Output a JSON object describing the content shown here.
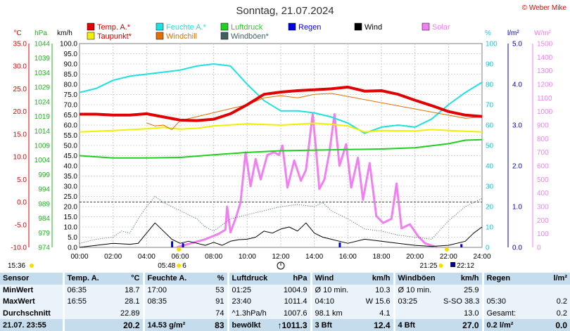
{
  "title": "Sonntag, 21.07.2024",
  "credit": "© Weber Mike",
  "legend": [
    {
      "label": "Temp. A.*",
      "color": "#e00000"
    },
    {
      "label": "Feuchte A.*",
      "color": "#20e0e0"
    },
    {
      "label": "Luftdruck",
      "color": "#20d020"
    },
    {
      "label": "Regen",
      "color": "#0000e0"
    },
    {
      "label": "Wind",
      "color": "#000000"
    },
    {
      "label": "Solar",
      "color": "#f080f0"
    },
    {
      "label": "Taupunkt*",
      "color": "#f0f000"
    },
    {
      "label": "Windchill",
      "color": "#e07000"
    },
    {
      "label": "Windböen*",
      "color": "#406060"
    }
  ],
  "axes": {
    "temp": {
      "unit": "°C",
      "ticks": [
        "35.0",
        "30.0",
        "25.0",
        "20.0",
        "15.0",
        "10.0",
        "5.0",
        "0.0",
        "-5.0",
        "-10.0"
      ],
      "range": [
        -10,
        35
      ],
      "color": "#e00000"
    },
    "pressure": {
      "unit": "hPa",
      "ticks": [
        "1044",
        "1039",
        "1034",
        "1029",
        "1024",
        "1019",
        "1014",
        "1009",
        "1004",
        "999",
        "994",
        "989",
        "984",
        "979",
        "974"
      ],
      "range": [
        974,
        1044
      ],
      "color": "#20b020"
    },
    "wind": {
      "unit": "km/h",
      "ticks": [
        "100.0",
        "95.0",
        "90.0",
        "85.0",
        "80.0",
        "75.0",
        "70.0",
        "65.0",
        "60.0",
        "55.0",
        "50.0",
        "45.0",
        "40.0",
        "35.0",
        "30.0",
        "25.0",
        "20.0",
        "15.0",
        "10.0",
        "5.0",
        "0.0"
      ],
      "range": [
        0,
        100
      ]
    },
    "humidity": {
      "unit": "%",
      "ticks": [
        "100",
        "90",
        "80",
        "70",
        "60",
        "50",
        "40",
        "30",
        "20",
        "10",
        "0"
      ],
      "range": [
        0,
        100
      ],
      "color": "#20c0d0"
    },
    "rain": {
      "unit": "l/m²",
      "ticks": [
        "5.0",
        "4.0",
        "3.0",
        "2.0",
        "1.0",
        "0.0"
      ],
      "range": [
        0,
        5
      ],
      "color": "#0000c0"
    },
    "solar": {
      "unit": "W/m²",
      "ticks": [
        "1500",
        "1400",
        "1300",
        "1200",
        "1100",
        "1000",
        "900",
        "800",
        "700",
        "600",
        "500",
        "400",
        "300",
        "200",
        "100",
        "0"
      ],
      "range": [
        0,
        1500
      ],
      "color": "#f080f0"
    },
    "x": {
      "ticks": [
        "00:00",
        "02:00",
        "04:00",
        "06:00",
        "08:00",
        "10:00",
        "12:00",
        "14:00",
        "16:00",
        "18:00",
        "20:00",
        "22:00",
        "24:00"
      ],
      "range": [
        0,
        24
      ]
    }
  },
  "markers": {
    "left": {
      "time": "15:36"
    },
    "sunrise": {
      "time": "05:48",
      "extra": "6"
    },
    "sunset": {
      "time": "21:25"
    },
    "moon": {
      "time": "22:12"
    }
  },
  "chart_data": {
    "type": "line",
    "x_unit": "hour",
    "series": [
      {
        "name": "Temp. A.*",
        "axis": "temp",
        "points": [
          [
            0,
            19.4
          ],
          [
            1,
            19.4
          ],
          [
            2,
            19.2
          ],
          [
            3,
            19.2
          ],
          [
            4,
            19.5
          ],
          [
            5,
            18.8
          ],
          [
            6,
            18.1
          ],
          [
            7,
            18.0
          ],
          [
            8,
            18.3
          ],
          [
            9,
            19.5
          ],
          [
            10,
            21.5
          ],
          [
            11,
            23.8
          ],
          [
            12,
            24.3
          ],
          [
            13,
            24.6
          ],
          [
            14,
            24.8
          ],
          [
            15,
            25.0
          ],
          [
            16,
            25.4
          ],
          [
            17,
            24.5
          ],
          [
            18,
            24.6
          ],
          [
            19,
            23.8
          ],
          [
            20,
            22.5
          ],
          [
            21,
            21.3
          ],
          [
            22,
            20.0
          ],
          [
            23,
            19.2
          ],
          [
            24,
            18.9
          ]
        ]
      },
      {
        "name": "Feuchte A.*",
        "axis": "humidity",
        "points": [
          [
            0,
            76
          ],
          [
            1,
            78
          ],
          [
            2,
            82
          ],
          [
            3,
            84
          ],
          [
            4,
            85
          ],
          [
            5,
            86
          ],
          [
            6,
            87
          ],
          [
            7,
            89
          ],
          [
            8,
            90
          ],
          [
            9,
            89
          ],
          [
            10,
            80
          ],
          [
            11,
            72
          ],
          [
            12,
            67
          ],
          [
            13,
            67
          ],
          [
            14,
            66
          ],
          [
            15,
            64
          ],
          [
            16,
            61
          ],
          [
            17,
            56
          ],
          [
            18,
            59
          ],
          [
            19,
            60
          ],
          [
            20,
            59
          ],
          [
            21,
            63
          ],
          [
            22,
            70
          ],
          [
            23,
            76
          ],
          [
            24,
            81
          ]
        ]
      },
      {
        "name": "Taupunkt*",
        "axis": "temp",
        "points": [
          [
            0,
            15.5
          ],
          [
            2,
            15.8
          ],
          [
            4,
            16.2
          ],
          [
            5,
            16.5
          ],
          [
            6,
            16.1
          ],
          [
            7,
            16.3
          ],
          [
            8,
            16.8
          ],
          [
            10,
            17.3
          ],
          [
            12,
            17.0
          ],
          [
            14,
            17.4
          ],
          [
            15,
            17.2
          ],
          [
            16,
            16.8
          ],
          [
            17,
            15.5
          ],
          [
            18,
            15.8
          ],
          [
            20,
            15.7
          ],
          [
            21,
            16.0
          ],
          [
            22,
            15.8
          ],
          [
            24,
            15.5
          ]
        ]
      },
      {
        "name": "Windchill",
        "axis": "temp",
        "points": [
          [
            4,
            17.5
          ],
          [
            4.5,
            16.8
          ],
          [
            5,
            17.0
          ],
          [
            5.5,
            16.0
          ],
          [
            6,
            18.0
          ],
          [
            10,
            21.5
          ],
          [
            11,
            23.0
          ],
          [
            12,
            23.5
          ],
          [
            13,
            23.0
          ],
          [
            14,
            23.8
          ],
          [
            15,
            24.0
          ],
          [
            23,
            18.5
          ],
          [
            24,
            18.8
          ]
        ]
      },
      {
        "name": "Luftdruck",
        "axis": "pressure",
        "points": [
          [
            0,
            1005.5
          ],
          [
            2,
            1004.7
          ],
          [
            4,
            1004.7
          ],
          [
            6,
            1004.9
          ],
          [
            8,
            1005.8
          ],
          [
            10,
            1006.6
          ],
          [
            12,
            1007.2
          ],
          [
            14,
            1007.4
          ],
          [
            16,
            1007.6
          ],
          [
            18,
            1007.8
          ],
          [
            20,
            1008.2
          ],
          [
            22,
            1009.6
          ],
          [
            23,
            1010.8
          ],
          [
            24,
            1011.0
          ]
        ]
      },
      {
        "name": "Solar",
        "axis": "solar",
        "points": [
          [
            5.8,
            0
          ],
          [
            6.5,
            25
          ],
          [
            7.5,
            60
          ],
          [
            8.3,
            100
          ],
          [
            8.7,
            130
          ],
          [
            8.8,
            300
          ],
          [
            9.0,
            110
          ],
          [
            9.3,
            210
          ],
          [
            9.6,
            330
          ],
          [
            9.9,
            700
          ],
          [
            10.2,
            450
          ],
          [
            10.5,
            650
          ],
          [
            10.8,
            500
          ],
          [
            11.2,
            680
          ],
          [
            11.6,
            700
          ],
          [
            11.9,
            680
          ],
          [
            12.1,
            750
          ],
          [
            12.4,
            440
          ],
          [
            12.8,
            640
          ],
          [
            13.2,
            490
          ],
          [
            13.5,
            570
          ],
          [
            13.9,
            980
          ],
          [
            14.1,
            720
          ],
          [
            14.3,
            430
          ],
          [
            14.6,
            500
          ],
          [
            14.9,
            700
          ],
          [
            15.2,
            980
          ],
          [
            15.5,
            600
          ],
          [
            15.9,
            760
          ],
          [
            16.2,
            440
          ],
          [
            16.6,
            660
          ],
          [
            16.9,
            350
          ],
          [
            17.3,
            620
          ],
          [
            17.7,
            230
          ],
          [
            18.1,
            180
          ],
          [
            18.6,
            210
          ],
          [
            18.9,
            470
          ],
          [
            19.2,
            140
          ],
          [
            19.7,
            170
          ],
          [
            20.2,
            80
          ],
          [
            20.6,
            30
          ],
          [
            21.3,
            0
          ]
        ]
      },
      {
        "name": "Wind",
        "axis": "wind",
        "points": [
          [
            0,
            0
          ],
          [
            1,
            1
          ],
          [
            2,
            2
          ],
          [
            3,
            1.5
          ],
          [
            3.5,
            2
          ],
          [
            4,
            7
          ],
          [
            4.5,
            12
          ],
          [
            5,
            8
          ],
          [
            5.5,
            4
          ],
          [
            6,
            2
          ],
          [
            6.5,
            3
          ],
          [
            7,
            2
          ],
          [
            7.5,
            1
          ],
          [
            8,
            2.5
          ],
          [
            8.5,
            1
          ],
          [
            9,
            3
          ],
          [
            9.5,
            3.8
          ],
          [
            10,
            4
          ],
          [
            10.5,
            5
          ],
          [
            11,
            8
          ],
          [
            11.5,
            7
          ],
          [
            12,
            9
          ],
          [
            12.5,
            10
          ],
          [
            13,
            8
          ],
          [
            13.5,
            12
          ],
          [
            14,
            7
          ],
          [
            14.5,
            5
          ],
          [
            15,
            4
          ],
          [
            15.5,
            3
          ],
          [
            16,
            2
          ],
          [
            17,
            4
          ],
          [
            18,
            3
          ],
          [
            19,
            2
          ],
          [
            20,
            1
          ],
          [
            21,
            0.5
          ],
          [
            22,
            1
          ],
          [
            23,
            3
          ],
          [
            23.5,
            7
          ],
          [
            24,
            10
          ]
        ]
      },
      {
        "name": "Windböen*",
        "axis": "wind",
        "points": [
          [
            0,
            2
          ],
          [
            1,
            4
          ],
          [
            2,
            5
          ],
          [
            2.5,
            8
          ],
          [
            3,
            7
          ],
          [
            3.5,
            14
          ],
          [
            4,
            20
          ],
          [
            4.5,
            25
          ],
          [
            5,
            22
          ],
          [
            6,
            18
          ],
          [
            7,
            14
          ],
          [
            7.5,
            10
          ],
          [
            8,
            8
          ],
          [
            9,
            14
          ],
          [
            10,
            16
          ],
          [
            11,
            18
          ],
          [
            12,
            20
          ],
          [
            13,
            21
          ],
          [
            14,
            20
          ],
          [
            14.5,
            22
          ],
          [
            15,
            18
          ],
          [
            16,
            14
          ],
          [
            17,
            9
          ],
          [
            18,
            8
          ],
          [
            19,
            6
          ],
          [
            20,
            5
          ],
          [
            21,
            4
          ],
          [
            22,
            13
          ],
          [
            23,
            20
          ],
          [
            23.5,
            22
          ],
          [
            24,
            24
          ]
        ]
      },
      {
        "name": "Regen",
        "axis": "rain",
        "points": [
          [
            5.5,
            0.15
          ],
          [
            6.15,
            0.1
          ],
          [
            15.5,
            0.12
          ],
          [
            22.75,
            0.08
          ]
        ]
      }
    ]
  },
  "table": {
    "headers": [
      "Sensor",
      "Temp. A.",
      "°C",
      "Feuchte A.",
      "%",
      "Luftdruck",
      "hPa",
      "Wind",
      "km/h",
      "Windböen",
      "km/h",
      "Regen",
      "l/m²"
    ],
    "rows": [
      [
        "MinWert",
        "06:35",
        "18.7",
        "17:00",
        "53",
        "01:25",
        "1004.9",
        "Ø 10 min.",
        "10.3",
        "Ø 10 min.",
        "25.9",
        "",
        ""
      ],
      [
        "MaxWert",
        "16:55",
        "28.1",
        "08:35",
        "91",
        "23:40",
        "1011.4",
        "04:10",
        "W 15.6",
        "03:25",
        "S-SO 38.3",
        "05:30",
        "0.2"
      ],
      [
        "Durchschnitt",
        "",
        "22.89",
        "",
        "74",
        "^1.3hPa/h",
        "1007.6",
        "98.1 km",
        "4.1",
        "",
        "13.0",
        "Gesamt:",
        "0.2"
      ],
      [
        "21.07. 23:55",
        "",
        "20.2",
        "14.53 g/m²",
        "83",
        "bewölkt",
        "↑1011.3",
        "3 Bft",
        "12.4",
        "4 Bft",
        "27.0",
        "0.2 l/m²",
        "0.0"
      ]
    ]
  }
}
